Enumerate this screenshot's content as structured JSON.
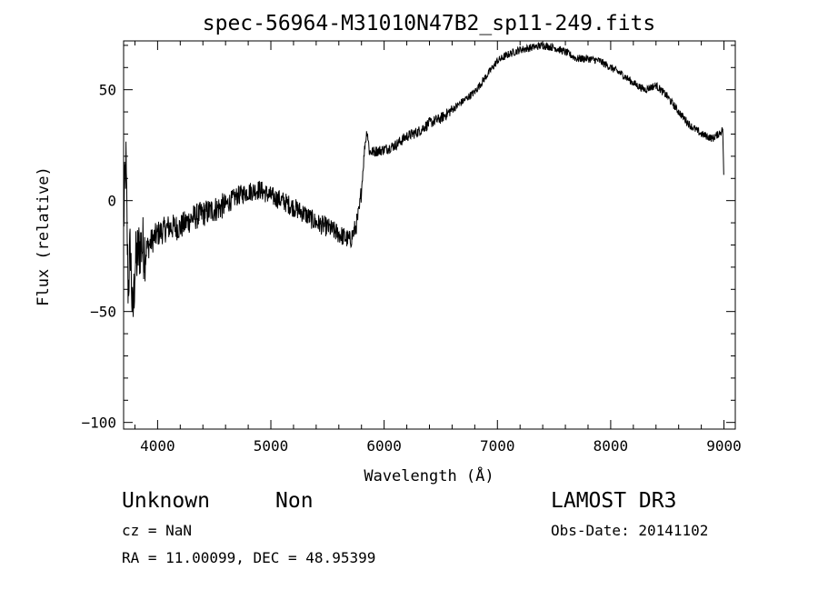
{
  "chart_data": {
    "type": "line",
    "title": "spec-56964-M31010N47B2_sp11-249.fits",
    "xlabel": "Wavelength (Å)",
    "ylabel": "Flux (relative)",
    "xlim": [
      3700,
      9100
    ],
    "ylim": [
      -103,
      72
    ],
    "xticks": [
      4000,
      5000,
      6000,
      7000,
      8000,
      9000
    ],
    "yticks": [
      -100,
      -50,
      0,
      50
    ],
    "grid": false,
    "series": [
      {
        "x": [
          3700,
          3720,
          3740,
          3760,
          3780,
          3800,
          3820,
          3850,
          3900,
          3950,
          4000,
          4100,
          4200,
          4300,
          4400,
          4500,
          4600,
          4700,
          4800,
          4900,
          5000,
          5100,
          5200,
          5300,
          5400,
          5500,
          5600,
          5700,
          5750,
          5780,
          5800,
          5830,
          5850,
          5870,
          5900,
          6000,
          6100,
          6200,
          6300,
          6400,
          6500,
          6600,
          6700,
          6800,
          6900,
          7000,
          7100,
          7200,
          7300,
          7400,
          7500,
          7600,
          7700,
          7800,
          7900,
          8000,
          8100,
          8200,
          8300,
          8400,
          8500,
          8600,
          8700,
          8800,
          8900,
          8950,
          8990,
          9000
        ],
        "y": [
          -10,
          18,
          -40,
          -20,
          -55,
          -30,
          -25,
          -20,
          -22,
          -18,
          -15,
          -12,
          -12,
          -8,
          -6,
          -4,
          -2,
          2,
          4,
          5,
          2,
          0,
          -3,
          -6,
          -10,
          -12,
          -15,
          -18,
          -12,
          -5,
          5,
          25,
          32,
          22,
          22,
          23,
          25,
          29,
          31,
          35,
          37,
          41,
          45,
          49,
          56,
          63,
          66,
          68,
          69,
          70,
          69,
          67,
          64,
          64,
          63,
          60,
          57,
          53,
          50,
          52,
          47,
          40,
          34,
          30,
          28,
          30,
          32,
          5
        ]
      }
    ]
  },
  "footer": {
    "class_label": "Unknown",
    "subclass_label": "Non",
    "survey": "LAMOST DR3",
    "cz": "cz = NaN",
    "obs_date": "Obs-Date: 20141102",
    "coords": "RA =  11.00099, DEC =  48.95399"
  }
}
